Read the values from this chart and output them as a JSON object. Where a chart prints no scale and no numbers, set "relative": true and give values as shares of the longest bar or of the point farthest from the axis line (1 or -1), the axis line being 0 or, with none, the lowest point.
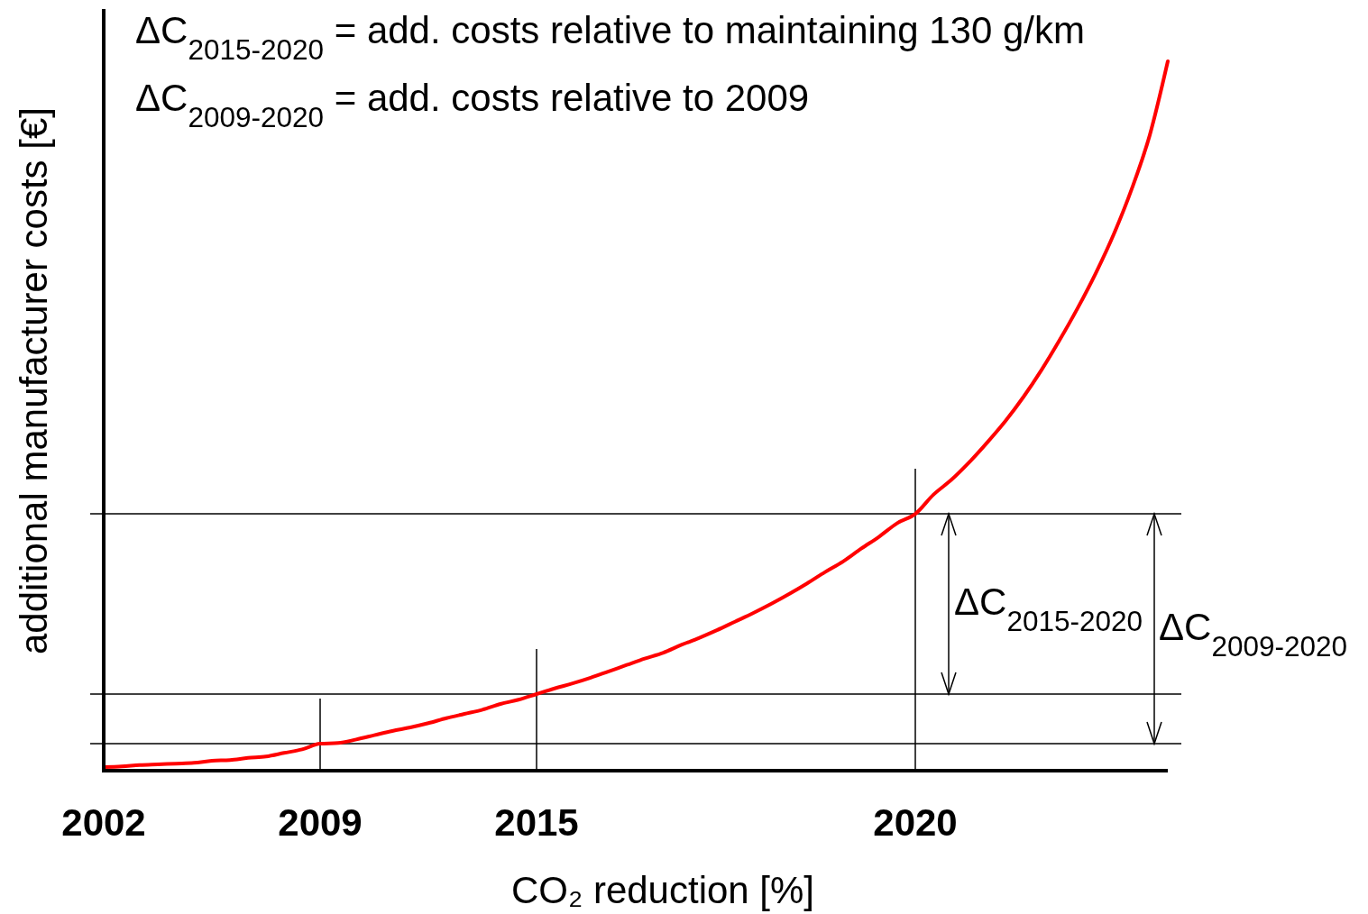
{
  "chart_data": {
    "type": "line",
    "relative": true,
    "color": "#ff0000",
    "xlabel": "CO₂ reduction [%]",
    "ylabel": "additional manufacturer costs [€]",
    "categories": [
      "2002",
      null,
      null,
      null,
      null,
      null,
      null,
      null,
      null,
      null,
      null,
      null,
      "2009",
      null,
      null,
      null,
      null,
      null,
      null,
      null,
      null,
      null,
      null,
      null,
      "2015",
      null,
      null,
      null,
      null,
      null,
      null,
      null,
      null,
      null,
      null,
      null,
      null,
      null,
      null,
      null,
      null,
      null,
      null,
      null,
      null,
      "2020",
      null,
      null,
      null,
      null,
      null,
      null,
      null,
      null,
      null,
      null,
      null,
      null,
      null,
      null
    ],
    "values": [
      0.005,
      0.006,
      0.008,
      0.009,
      0.01,
      0.011,
      0.014,
      0.015,
      0.018,
      0.02,
      0.025,
      0.03,
      0.038,
      0.039,
      0.044,
      0.05,
      0.056,
      0.061,
      0.067,
      0.074,
      0.08,
      0.086,
      0.094,
      0.1,
      0.108,
      0.116,
      0.123,
      0.131,
      0.14,
      0.149,
      0.158,
      0.166,
      0.177,
      0.187,
      0.198,
      0.21,
      0.222,
      0.235,
      0.249,
      0.264,
      0.28,
      0.295,
      0.313,
      0.33,
      0.349,
      0.362,
      0.389,
      0.41,
      0.435,
      0.463,
      0.493,
      0.527,
      0.565,
      0.607,
      0.652,
      0.701,
      0.756,
      0.82,
      0.896,
      1
    ],
    "ref_lines": [
      {
        "axis": "y",
        "value": 0.362
      },
      {
        "axis": "y",
        "value": 0.108
      },
      {
        "axis": "y",
        "value": 0.038
      },
      {
        "axis": "x",
        "value": "2009"
      },
      {
        "axis": "x",
        "value": "2015"
      },
      {
        "axis": "x",
        "value": "2020"
      }
    ],
    "annotations": [
      "ΔC$_{2015-2020}$ = add. costs relative to maintaining 130 g/km",
      "ΔC$_{2009-2020}$ = add. costs relative to 2009",
      "ΔC$_{2015-2020}$",
      "ΔC$_{2009-2020}$"
    ]
  }
}
